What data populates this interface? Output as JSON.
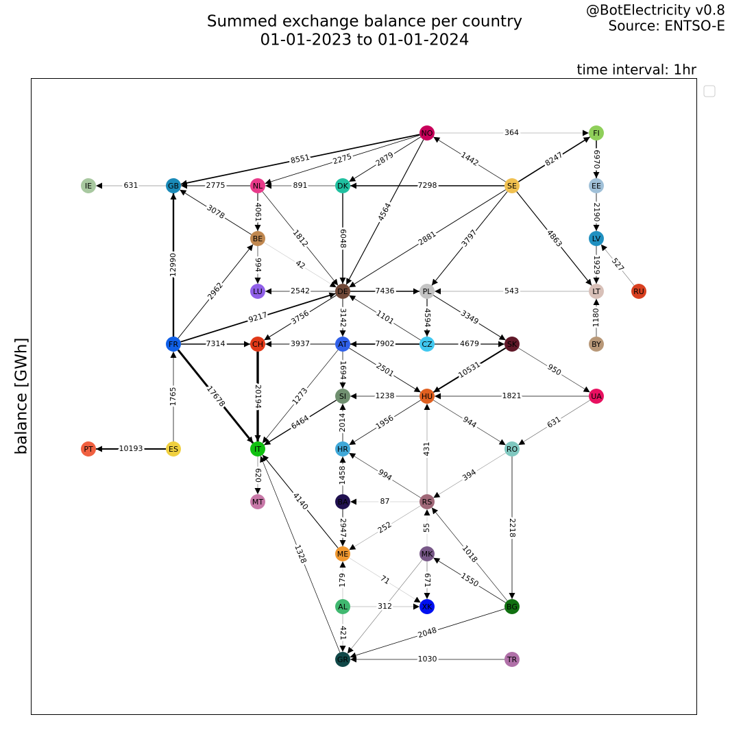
{
  "header": {
    "title": [
      "Summed exchange balance per country",
      "01-01-2023 to 01-01-2024"
    ],
    "credit": [
      "@BotElectricity v0.8",
      "Source: ENTSO-E"
    ],
    "interval": "time interval: 1hr",
    "ylabel": "balance [GWh]"
  },
  "nodes": [
    {
      "label": "NO",
      "color": "#c8005a"
    },
    {
      "label": "FI",
      "color": "#8fcf5a"
    },
    {
      "label": "IE",
      "color": "#a8c8a0"
    },
    {
      "label": "GB",
      "color": "#1a8ab8"
    },
    {
      "label": "NL",
      "color": "#e83a8a"
    },
    {
      "label": "DK",
      "color": "#20c0a0"
    },
    {
      "label": "SE",
      "color": "#f0c050"
    },
    {
      "label": "EE",
      "color": "#a0c0d8"
    },
    {
      "label": "BE",
      "color": "#c08850"
    },
    {
      "label": "LV",
      "color": "#2090c0"
    },
    {
      "label": "LU",
      "color": "#9060e8"
    },
    {
      "label": "DE",
      "color": "#704838"
    },
    {
      "label": "PL",
      "color": "#c4c4c4"
    },
    {
      "label": "LT",
      "color": "#d8c0b8"
    },
    {
      "label": "RU",
      "color": "#d84020"
    },
    {
      "label": "FR",
      "color": "#1060e8"
    },
    {
      "label": "CH",
      "color": "#e03818"
    },
    {
      "label": "AT",
      "color": "#3060e8"
    },
    {
      "label": "CZ",
      "color": "#40c8f0"
    },
    {
      "label": "SK",
      "color": "#601828"
    },
    {
      "label": "BY",
      "color": "#b89878"
    },
    {
      "label": "SI",
      "color": "#709070"
    },
    {
      "label": "HU",
      "color": "#e06020"
    },
    {
      "label": "UA",
      "color": "#e81060"
    },
    {
      "label": "PT",
      "color": "#f06040"
    },
    {
      "label": "ES",
      "color": "#f0d040"
    },
    {
      "label": "IT",
      "color": "#10c010"
    },
    {
      "label": "HR",
      "color": "#40a8d8"
    },
    {
      "label": "RO",
      "color": "#80c8c0"
    },
    {
      "label": "MT",
      "color": "#c878a8"
    },
    {
      "label": "BA",
      "color": "#201050"
    },
    {
      "label": "RS",
      "color": "#a06878"
    },
    {
      "label": "ME",
      "color": "#f09830"
    },
    {
      "label": "MK",
      "color": "#785888"
    },
    {
      "label": "AL",
      "color": "#40b870"
    },
    {
      "label": "XK",
      "color": "#0010f0"
    },
    {
      "label": "BG",
      "color": "#107010"
    },
    {
      "label": "GR",
      "color": "#104848"
    },
    {
      "label": "TR",
      "color": "#b070a8"
    }
  ],
  "edges": [
    {
      "from": "NO",
      "to": "FI",
      "value": 364
    },
    {
      "from": "NO",
      "to": "GB",
      "value": 8551
    },
    {
      "from": "NO",
      "to": "NL",
      "value": 2275
    },
    {
      "from": "NO",
      "to": "DK",
      "value": 2879
    },
    {
      "from": "NO",
      "to": "DE",
      "value": 4564
    },
    {
      "from": "SE",
      "to": "NO",
      "value": 1442
    },
    {
      "from": "SE",
      "to": "FI",
      "value": 8247
    },
    {
      "from": "FI",
      "to": "EE",
      "value": 6970
    },
    {
      "from": "EE",
      "to": "LV",
      "value": 2190
    },
    {
      "from": "LV",
      "to": "LT",
      "value": 1929
    },
    {
      "from": "RU",
      "to": "LV",
      "value": 527
    },
    {
      "from": "SE",
      "to": "DK",
      "value": 7298
    },
    {
      "from": "SE",
      "to": "DE",
      "value": 2881
    },
    {
      "from": "SE",
      "to": "PL",
      "value": 3797
    },
    {
      "from": "SE",
      "to": "LT",
      "value": 4863
    },
    {
      "from": "GB",
      "to": "IE",
      "value": 631
    },
    {
      "from": "NL",
      "to": "GB",
      "value": 2775
    },
    {
      "from": "DK",
      "to": "NL",
      "value": 891
    },
    {
      "from": "BE",
      "to": "GB",
      "value": 3078
    },
    {
      "from": "NL",
      "to": "BE",
      "value": 4061
    },
    {
      "from": "NL",
      "to": "DE",
      "value": 1812
    },
    {
      "from": "BE",
      "to": "DE",
      "value": 42
    },
    {
      "from": "BE",
      "to": "LU",
      "value": 994
    },
    {
      "from": "DK",
      "to": "DE",
      "value": 6048
    },
    {
      "from": "FR",
      "to": "GB",
      "value": 12990
    },
    {
      "from": "FR",
      "to": "BE",
      "value": 2962
    },
    {
      "from": "FR",
      "to": "DE",
      "value": 9217
    },
    {
      "from": "DE",
      "to": "LU",
      "value": 2542
    },
    {
      "from": "DE",
      "to": "PL",
      "value": 7436
    },
    {
      "from": "LT",
      "to": "PL",
      "value": 543
    },
    {
      "from": "DE",
      "to": "CH",
      "value": 3756
    },
    {
      "from": "DE",
      "to": "AT",
      "value": 3142
    },
    {
      "from": "CZ",
      "to": "DE",
      "value": 1101
    },
    {
      "from": "PL",
      "to": "CZ",
      "value": 4594
    },
    {
      "from": "PL",
      "to": "SK",
      "value": 3349
    },
    {
      "from": "BY",
      "to": "LT",
      "value": 1180
    },
    {
      "from": "FR",
      "to": "CH",
      "value": 7314
    },
    {
      "from": "AT",
      "to": "CH",
      "value": 3937
    },
    {
      "from": "CZ",
      "to": "AT",
      "value": 7902
    },
    {
      "from": "CZ",
      "to": "SK",
      "value": 4679
    },
    {
      "from": "FR",
      "to": "IT",
      "value": 17678
    },
    {
      "from": "CH",
      "to": "IT",
      "value": 20194
    },
    {
      "from": "AT",
      "to": "IT",
      "value": 1273
    },
    {
      "from": "AT",
      "to": "SI",
      "value": 1694
    },
    {
      "from": "AT",
      "to": "HU",
      "value": 2501
    },
    {
      "from": "SK",
      "to": "HU",
      "value": 10531
    },
    {
      "from": "SK",
      "to": "UA",
      "value": 950
    },
    {
      "from": "ES",
      "to": "FR",
      "value": 1765
    },
    {
      "from": "ES",
      "to": "PT",
      "value": 10193
    },
    {
      "from": "SI",
      "to": "IT",
      "value": 6464
    },
    {
      "from": "HU",
      "to": "SI",
      "value": 1238
    },
    {
      "from": "UA",
      "to": "HU",
      "value": 1821
    },
    {
      "from": "HR",
      "to": "SI",
      "value": 2014
    },
    {
      "from": "HU",
      "to": "HR",
      "value": 1956
    },
    {
      "from": "HU",
      "to": "RO",
      "value": 944
    },
    {
      "from": "UA",
      "to": "RO",
      "value": 631
    },
    {
      "from": "IT",
      "to": "MT",
      "value": 620
    },
    {
      "from": "RS",
      "to": "HU",
      "value": 431
    },
    {
      "from": "RS",
      "to": "HR",
      "value": 994
    },
    {
      "from": "RO",
      "to": "RS",
      "value": 394
    },
    {
      "from": "BA",
      "to": "HR",
      "value": 1458
    },
    {
      "from": "RS",
      "to": "BA",
      "value": 87
    },
    {
      "from": "BA",
      "to": "ME",
      "value": 2947
    },
    {
      "from": "RS",
      "to": "ME",
      "value": 252
    },
    {
      "from": "ME",
      "to": "IT",
      "value": 4140
    },
    {
      "from": "GR",
      "to": "IT",
      "value": 1328
    },
    {
      "from": "ME",
      "to": "XK",
      "value": 71
    },
    {
      "from": "MK",
      "to": "RS",
      "value": 55
    },
    {
      "from": "MK",
      "to": "XK",
      "value": 671
    },
    {
      "from": "AL",
      "to": "ME",
      "value": 179
    },
    {
      "from": "AL",
      "to": "XK",
      "value": 312
    },
    {
      "from": "AL",
      "to": "GR",
      "value": 421
    },
    {
      "from": "MK",
      "to": "GR",
      "value": null
    },
    {
      "from": "BG",
      "to": "RS",
      "value": 1018
    },
    {
      "from": "BG",
      "to": "MK",
      "value": 1550
    },
    {
      "from": "RO",
      "to": "BG",
      "value": 2218
    },
    {
      "from": "BG",
      "to": "GR",
      "value": 2048
    },
    {
      "from": "TR",
      "to": "GR",
      "value": 1030
    }
  ]
}
